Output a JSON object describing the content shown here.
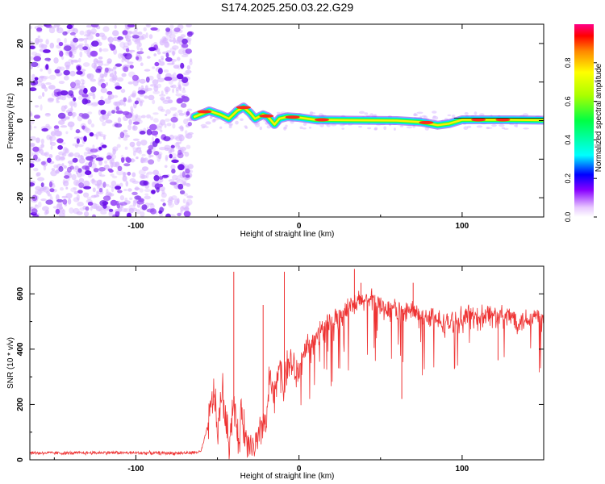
{
  "title": "S174.2025.250.03.22.G29",
  "chart_data": [
    {
      "type": "heatmap",
      "xlabel": "Height of straight line (km)",
      "ylabel": "Frequency (Hz)",
      "xlim": [
        -165,
        150
      ],
      "ylim": [
        -25,
        25
      ],
      "xticks": [
        -100,
        0,
        100
      ],
      "yticks": [
        -20,
        -10,
        0,
        10,
        20
      ],
      "grid": false,
      "colorbar": {
        "label": "Normalized spectral amplitude",
        "range": [
          0,
          1
        ],
        "ticks": [
          0.0,
          0.2,
          0.4,
          0.6,
          0.8
        ]
      },
      "noise_region_x": [
        -165,
        -66
      ],
      "signal_track": [
        {
          "x": -64,
          "y": 1.0
        },
        {
          "x": -55,
          "y": 2.5
        },
        {
          "x": -48,
          "y": 1.5
        },
        {
          "x": -43,
          "y": 0.5
        },
        {
          "x": -38,
          "y": 2.5
        },
        {
          "x": -34,
          "y": 3.5
        },
        {
          "x": -30,
          "y": 2.0
        },
        {
          "x": -27,
          "y": 0.5
        },
        {
          "x": -22,
          "y": 1.5
        },
        {
          "x": -19,
          "y": 1.0
        },
        {
          "x": -15,
          "y": -1.0
        },
        {
          "x": -12,
          "y": 0.5
        },
        {
          "x": -7,
          "y": 1.0
        },
        {
          "x": 0,
          "y": 0.8
        },
        {
          "x": 10,
          "y": 0.2
        },
        {
          "x": 30,
          "y": 0.1
        },
        {
          "x": 60,
          "y": 0.0
        },
        {
          "x": 75,
          "y": -0.4
        },
        {
          "x": 85,
          "y": -1.2
        },
        {
          "x": 92,
          "y": -0.8
        },
        {
          "x": 100,
          "y": 0.2
        },
        {
          "x": 130,
          "y": 0.2
        },
        {
          "x": 150,
          "y": 0.1
        }
      ]
    },
    {
      "type": "line",
      "xlabel": "Height of straight line (km)",
      "ylabel": "SNR (10 * v/v)",
      "xlim": [
        -165,
        150
      ],
      "ylim": [
        0,
        700
      ],
      "xticks": [
        -100,
        0,
        100
      ],
      "yticks": [
        0,
        200,
        400,
        600
      ],
      "grid": false,
      "color": "#ee3333",
      "series": [
        {
          "name": "SNR",
          "x": [
            -165,
            -140,
            -120,
            -100,
            -80,
            -66,
            -60,
            -56,
            -52,
            -50,
            -47,
            -45,
            -43,
            -40,
            -37,
            -35,
            -32,
            -28,
            -25,
            -22,
            -20,
            -18,
            -15,
            -12,
            -10,
            -8,
            -5,
            -2,
            0,
            5,
            10,
            15,
            20,
            25,
            30,
            35,
            40,
            45,
            50,
            55,
            60,
            65,
            70,
            75,
            80,
            85,
            90,
            95,
            100,
            105,
            110,
            115,
            120,
            125,
            130,
            135,
            140,
            145,
            150
          ],
          "y": [
            25,
            24,
            26,
            25,
            24,
            25,
            30,
            120,
            250,
            90,
            260,
            140,
            60,
            220,
            40,
            180,
            50,
            40,
            60,
            150,
            120,
            300,
            200,
            380,
            250,
            320,
            360,
            300,
            330,
            400,
            440,
            470,
            500,
            520,
            540,
            560,
            580,
            570,
            560,
            540,
            550,
            530,
            540,
            510,
            520,
            500,
            490,
            500,
            510,
            520,
            510,
            530,
            520,
            510,
            520,
            500,
            510,
            520,
            500
          ]
        }
      ],
      "spikes": [
        {
          "x": -40,
          "y": 680
        },
        {
          "x": -22,
          "y": 560
        },
        {
          "x": -9,
          "y": 680
        },
        {
          "x": 34,
          "y": 690
        },
        {
          "x": 38,
          "y": 640
        },
        {
          "x": 63,
          "y": 220
        },
        {
          "x": 70,
          "y": 640
        },
        {
          "x": 122,
          "y": 360
        }
      ]
    }
  ]
}
